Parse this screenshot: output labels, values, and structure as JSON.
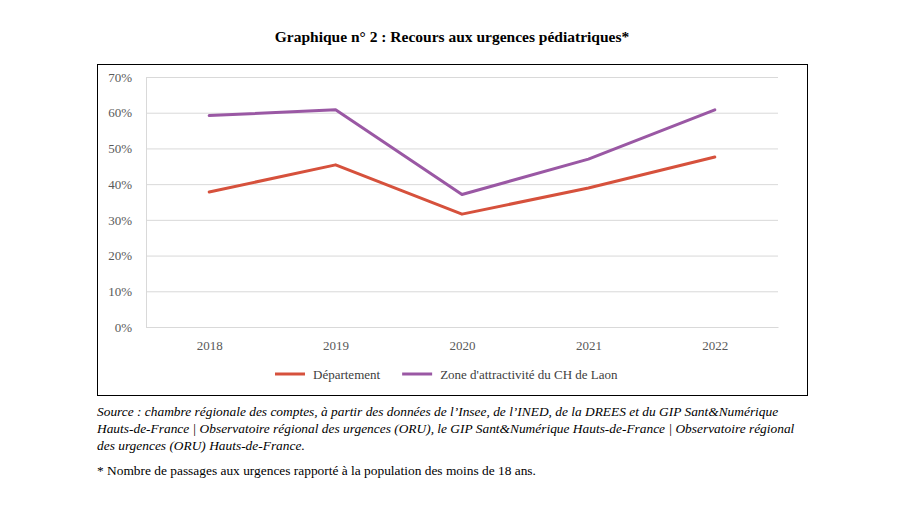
{
  "chart_data": {
    "type": "line",
    "title": "Graphique n° 2 : Recours aux urgences pédiatriques*",
    "categories": [
      "2018",
      "2019",
      "2020",
      "2021",
      "2022"
    ],
    "series": [
      {
        "name": "Département",
        "color": "#d6513c",
        "values": [
          37.8,
          45.4,
          31.6,
          38.9,
          47.6
        ]
      },
      {
        "name": "Zone d'attractivité du CH de Laon",
        "color": "#9a58a4",
        "values": [
          59.2,
          60.8,
          37.1,
          47.0,
          60.8
        ]
      }
    ],
    "ylim": [
      0,
      70
    ],
    "yticks": [
      {
        "value": 0,
        "label": "0%"
      },
      {
        "value": 10,
        "label": "10%"
      },
      {
        "value": 20,
        "label": "20%"
      },
      {
        "value": 30,
        "label": "30%"
      },
      {
        "value": 40,
        "label": "40%"
      },
      {
        "value": 50,
        "label": "50%"
      },
      {
        "value": 60,
        "label": "60%"
      },
      {
        "value": 70,
        "label": "70%"
      }
    ],
    "grid": true,
    "legend": "bottom",
    "annotations": [
      "Source : chambre régionale des comptes, à partir des données de l’Insee, de l’INED, de la DREES et du GIP Sant&Numérique Hauts-de-France | Observatoire régional des urgences (ORU), le GIP Sant&Numérique Hauts-de-France | Observatoire régional des urgences (ORU) Hauts-de-France.",
      "* Nombre de passages aux urgences rapporté à la population des moins de 18 ans."
    ]
  }
}
